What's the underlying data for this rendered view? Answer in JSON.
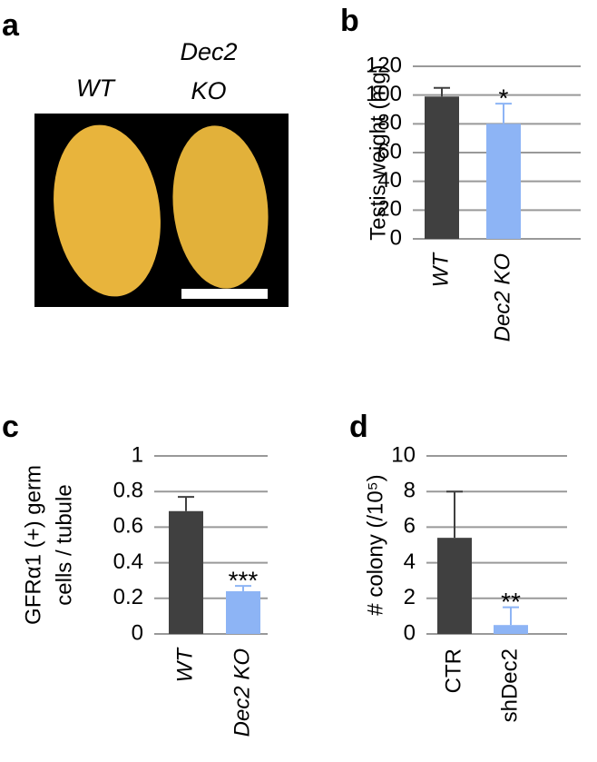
{
  "image_panel": {
    "label": "a",
    "captions": [
      "WT",
      "Dec2 KO"
    ]
  },
  "chart_data": [
    {
      "label": "b",
      "type": "bar",
      "ylabel": "Testis weight (mg)",
      "categories": [
        "WT",
        "Dec2 KO"
      ],
      "italic_categories": true,
      "values": [
        99,
        80
      ],
      "errors": [
        6,
        14
      ],
      "significance": [
        null,
        "*"
      ],
      "colors": [
        "#404040",
        "#8db4f5"
      ],
      "ylim": [
        0,
        120
      ],
      "yticks": [
        0,
        20,
        40,
        60,
        80,
        100,
        120
      ],
      "grid": true
    },
    {
      "label": "c",
      "type": "bar",
      "ylabel": [
        "GFRα1 (+) germ",
        "cells / tubule"
      ],
      "categories": [
        "WT",
        "Dec2 KO"
      ],
      "italic_categories": true,
      "values": [
        0.69,
        0.24
      ],
      "errors": [
        0.08,
        0.03
      ],
      "significance": [
        null,
        "***"
      ],
      "colors": [
        "#404040",
        "#8db4f5"
      ],
      "ylim": [
        0,
        1
      ],
      "yticks": [
        0,
        0.2,
        0.4,
        0.6,
        0.8,
        1
      ],
      "grid": true
    },
    {
      "label": "d",
      "type": "bar",
      "ylabel": "# colony (/10⁵)",
      "categories": [
        "CTR",
        "shDec2"
      ],
      "italic_categories": false,
      "values": [
        5.4,
        0.5
      ],
      "errors": [
        2.6,
        1.0
      ],
      "significance": [
        null,
        "**"
      ],
      "colors": [
        "#404040",
        "#8db4f5"
      ],
      "ylim": [
        0,
        10
      ],
      "yticks": [
        0,
        2,
        4,
        6,
        8,
        10
      ],
      "grid": true
    }
  ]
}
